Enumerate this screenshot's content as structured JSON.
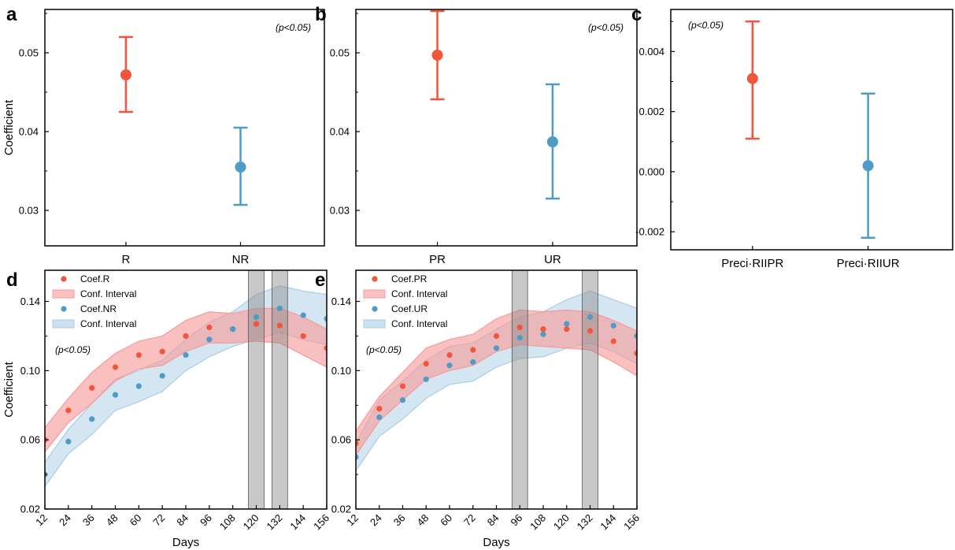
{
  "colors": {
    "red": "#f4553a",
    "blue": "#4e9bc6",
    "red_band": "#f79a9a",
    "blue_band": "#a9cde4",
    "shade": "#8c8c8c"
  },
  "chart_data": [
    {
      "id": "a",
      "type": "errorbar",
      "letter": "a",
      "categories": [
        "R",
        "NR"
      ],
      "series": [
        {
          "name": "R",
          "value": 0.0472,
          "low": 0.0425,
          "high": 0.052,
          "color": "red"
        },
        {
          "name": "NR",
          "value": 0.0355,
          "low": 0.0307,
          "high": 0.0405,
          "color": "blue"
        }
      ],
      "ylabel": "Coefficient",
      "ylim": [
        0.0255,
        0.0555
      ],
      "yticks": [
        0.03,
        0.04,
        0.05
      ],
      "ytick_labels": [
        "0.03",
        "0.04",
        "0.05"
      ],
      "annotation": "(p<0.05)"
    },
    {
      "id": "b",
      "type": "errorbar",
      "letter": "b",
      "categories": [
        "PR",
        "UR"
      ],
      "series": [
        {
          "name": "PR",
          "value": 0.0497,
          "low": 0.0441,
          "high": 0.0553,
          "color": "red"
        },
        {
          "name": "UR",
          "value": 0.0387,
          "low": 0.0315,
          "high": 0.046,
          "color": "blue"
        }
      ],
      "ylabel": "",
      "ylim": [
        0.0255,
        0.0555
      ],
      "yticks": [
        0.03,
        0.04,
        0.05
      ],
      "ytick_labels": [
        "0.03",
        "0.04",
        "0.05"
      ],
      "annotation": "(p<0.05)"
    },
    {
      "id": "c",
      "type": "errorbar",
      "letter": "c",
      "categories": [
        "Preci·RIIPR",
        "Preci·RIIUR"
      ],
      "series": [
        {
          "name": "Preci·RIIPR",
          "value": 0.0031,
          "low": 0.0011,
          "high": 0.005,
          "color": "red"
        },
        {
          "name": "Preci·RIIUR",
          "value": 0.0002,
          "low": -0.0022,
          "high": 0.0026,
          "color": "blue"
        }
      ],
      "ylabel": "",
      "ylim": [
        -0.0026,
        0.0054
      ],
      "yticks": [
        -0.002,
        0.0,
        0.002,
        0.004
      ],
      "ytick_labels": [
        "-0.002",
        "0.000",
        "0.002",
        "0.004"
      ],
      "annotation": "(p<0.05)"
    },
    {
      "id": "d",
      "type": "scatter_band",
      "letter": "d",
      "x": [
        12,
        24,
        36,
        48,
        60,
        72,
        84,
        96,
        108,
        120,
        132,
        144,
        156
      ],
      "xticks": [
        12,
        24,
        36,
        48,
        60,
        72,
        84,
        96,
        108,
        120,
        132,
        144,
        156
      ],
      "xlabel": "Days",
      "ylabel": "Coefficient",
      "xlim": [
        12,
        156
      ],
      "ylim": [
        0.02,
        0.158
      ],
      "yticks": [
        0.02,
        0.06,
        0.1,
        0.14
      ],
      "ytick_labels": [
        "0.02",
        "0.06",
        "0.10",
        "0.14"
      ],
      "annotation": "(p<0.05)",
      "shaded_ranges": [
        [
          116,
          124
        ],
        [
          128,
          136
        ]
      ],
      "series": [
        {
          "name": "Coef.R",
          "color": "red",
          "values": [
            0.06,
            0.077,
            0.09,
            0.102,
            0.109,
            0.111,
            0.12,
            0.125,
            0.124,
            0.127,
            0.126,
            0.12,
            0.113
          ],
          "band_name": "Conf. Interval",
          "band_color": "red_band",
          "lower": [
            0.053,
            0.07,
            0.081,
            0.094,
            0.101,
            0.103,
            0.111,
            0.116,
            0.116,
            0.117,
            0.116,
            0.109,
            0.102
          ],
          "upper": [
            0.067,
            0.084,
            0.099,
            0.11,
            0.117,
            0.12,
            0.129,
            0.134,
            0.133,
            0.136,
            0.136,
            0.131,
            0.124
          ]
        },
        {
          "name": "Coef.NR",
          "color": "blue",
          "values": [
            0.04,
            0.059,
            0.072,
            0.086,
            0.091,
            0.097,
            0.109,
            0.118,
            0.124,
            0.131,
            0.136,
            0.132,
            0.13
          ],
          "band_name": "Conf. Interval",
          "band_color": "blue_band",
          "lower": [
            0.033,
            0.052,
            0.063,
            0.077,
            0.082,
            0.088,
            0.1,
            0.108,
            0.114,
            0.118,
            0.122,
            0.118,
            0.115
          ],
          "upper": [
            0.047,
            0.066,
            0.081,
            0.095,
            0.1,
            0.106,
            0.118,
            0.128,
            0.134,
            0.144,
            0.149,
            0.146,
            0.144
          ]
        }
      ]
    },
    {
      "id": "e",
      "type": "scatter_band",
      "letter": "e",
      "x": [
        12,
        24,
        36,
        48,
        60,
        72,
        84,
        96,
        108,
        120,
        132,
        144,
        156
      ],
      "xticks": [
        12,
        24,
        36,
        48,
        60,
        72,
        84,
        96,
        108,
        120,
        132,
        144,
        156
      ],
      "xlabel": "Days",
      "ylabel": "",
      "xlim": [
        12,
        156
      ],
      "ylim": [
        0.02,
        0.158
      ],
      "yticks": [
        0.02,
        0.06,
        0.1,
        0.14
      ],
      "ytick_labels": [
        "0.02",
        "0.06",
        "0.10",
        "0.14"
      ],
      "annotation": "(p<0.05)",
      "shaded_ranges": [
        [
          92,
          100
        ],
        [
          128,
          136
        ]
      ],
      "series": [
        {
          "name": "Coef.PR",
          "color": "red",
          "values": [
            0.058,
            0.078,
            0.091,
            0.104,
            0.109,
            0.112,
            0.12,
            0.125,
            0.124,
            0.124,
            0.123,
            0.117,
            0.11
          ],
          "band_name": "Conf. Interval",
          "band_color": "red_band",
          "lower": [
            0.051,
            0.071,
            0.083,
            0.095,
            0.1,
            0.103,
            0.111,
            0.115,
            0.114,
            0.113,
            0.112,
            0.105,
            0.097
          ],
          "upper": [
            0.065,
            0.085,
            0.099,
            0.113,
            0.118,
            0.121,
            0.13,
            0.135,
            0.134,
            0.135,
            0.134,
            0.129,
            0.123
          ]
        },
        {
          "name": "Coef.UR",
          "color": "blue",
          "values": [
            0.05,
            0.073,
            0.083,
            0.095,
            0.103,
            0.105,
            0.113,
            0.119,
            0.121,
            0.127,
            0.131,
            0.126,
            0.12
          ],
          "band_name": "Conf. Interval",
          "band_color": "blue_band",
          "lower": [
            0.042,
            0.062,
            0.072,
            0.084,
            0.092,
            0.094,
            0.102,
            0.107,
            0.108,
            0.113,
            0.116,
            0.111,
            0.104
          ],
          "upper": [
            0.058,
            0.083,
            0.094,
            0.106,
            0.114,
            0.116,
            0.124,
            0.131,
            0.134,
            0.141,
            0.146,
            0.141,
            0.136
          ]
        }
      ]
    }
  ]
}
